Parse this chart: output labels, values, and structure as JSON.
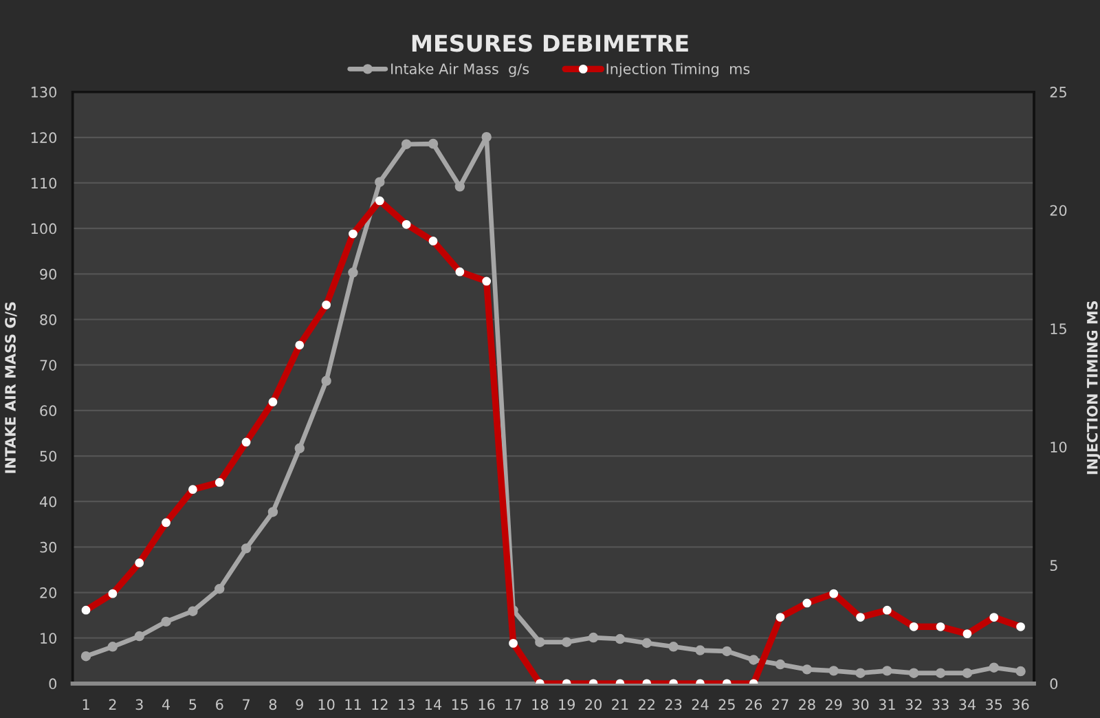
{
  "chart_data": {
    "type": "line",
    "title": "MESURES DEBIMETRE",
    "ylabel": "INTAKE AIR MASS G/S",
    "y2label": "INJECTION TIMING MS",
    "categories": [
      "1",
      "2",
      "3",
      "4",
      "5",
      "6",
      "7",
      "8",
      "9",
      "10",
      "11",
      "12",
      "13",
      "14",
      "15",
      "16",
      "17",
      "18",
      "19",
      "20",
      "21",
      "22",
      "23",
      "24",
      "25",
      "26",
      "27",
      "28",
      "29",
      "30",
      "31",
      "32",
      "33",
      "34",
      "35",
      "36"
    ],
    "series": [
      {
        "name": "Intake Air Mass  g/s",
        "color": "#a6a6a6",
        "values": [
          6,
          8.1,
          10.4,
          13.6,
          15.9,
          20.8,
          29.7,
          37.7,
          51.7,
          66.5,
          90.3,
          110.2,
          118.5,
          118.6,
          109.2,
          120.1,
          16.1,
          9.1,
          9.1,
          10.1,
          9.8,
          8.9,
          8.1,
          7.3,
          7.1,
          5.2,
          4.2,
          3.1,
          2.8,
          2.3,
          2.8,
          2.3,
          2.3,
          2.3,
          3.5,
          2.7
        ]
      },
      {
        "name": "Injection Timing  ms",
        "color": "#c00000",
        "axis": "y2",
        "values": [
          3.1,
          3.8,
          5.1,
          6.8,
          8.2,
          8.5,
          10.2,
          11.9,
          14.3,
          16.0,
          19.0,
          20.4,
          19.4,
          18.7,
          17.4,
          17.0,
          1.7,
          0,
          0,
          0,
          0,
          0,
          0,
          0,
          0,
          0,
          2.8,
          3.4,
          3.8,
          2.8,
          3.1,
          2.4,
          2.4,
          2.1,
          2.8,
          2.4
        ]
      }
    ],
    "ylim": [
      0,
      130
    ],
    "yticks": [
      0,
      10,
      20,
      30,
      40,
      50,
      60,
      70,
      80,
      90,
      100,
      110,
      120,
      130
    ],
    "y2lim": [
      0,
      25
    ],
    "y2ticks": [
      0,
      5,
      10,
      15,
      20,
      25
    ],
    "grid": "y",
    "legend": "top",
    "marker": "circle",
    "line_style": "solid"
  }
}
